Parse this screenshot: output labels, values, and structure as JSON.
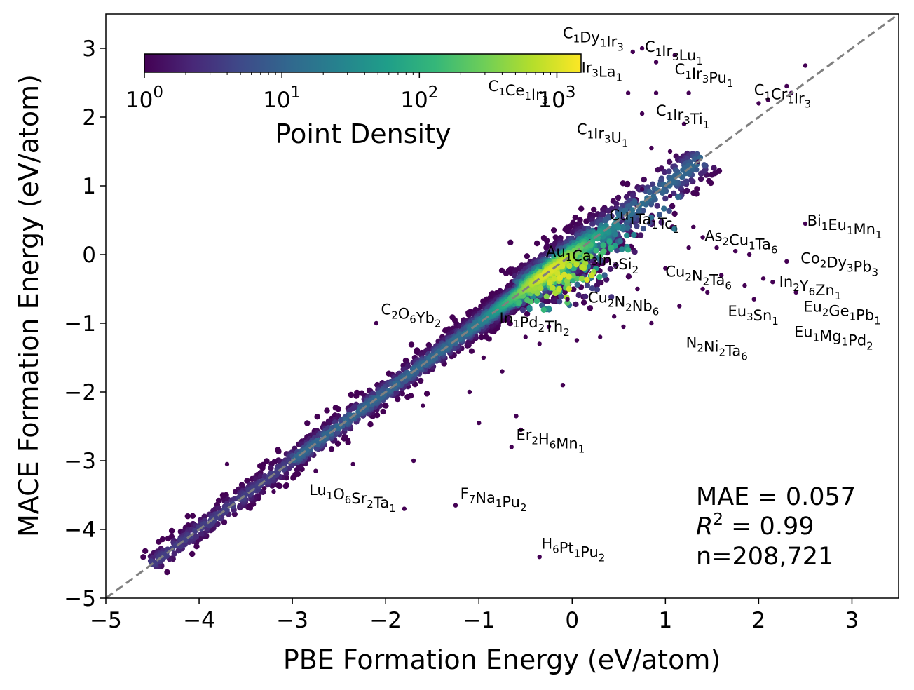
{
  "chart_data": {
    "type": "scatter",
    "xlabel": "PBE Formation Energy (eV/atom)",
    "ylabel": "MACE Formation Energy (eV/atom)",
    "xlim": [
      -5,
      3.5
    ],
    "ylim": [
      -5,
      3.5
    ],
    "x_ticks": [
      "−5",
      "−4",
      "−3",
      "−2",
      "−1",
      "0",
      "1",
      "2",
      "3"
    ],
    "y_ticks": [
      "−5",
      "−4",
      "−3",
      "−2",
      "−1",
      "0",
      "1",
      "2",
      "3"
    ],
    "x_tick_values": [
      -5,
      -4,
      -3,
      -2,
      -1,
      0,
      1,
      2,
      3
    ],
    "y_tick_values": [
      -5,
      -4,
      -3,
      -2,
      -1,
      0,
      1,
      2,
      3
    ],
    "parity_line": {
      "style": "dashed",
      "color": "#808080",
      "from": [
        -5,
        -5
      ],
      "to": [
        3.5,
        3.5
      ]
    },
    "colorbar": {
      "title": "Point Density",
      "scale": "log",
      "range": [
        1,
        1500
      ],
      "colormap": "viridis",
      "ticks": [
        {
          "base": "10",
          "exp": "0",
          "value": 1
        },
        {
          "base": "10",
          "exp": "1",
          "value": 10
        },
        {
          "base": "10",
          "exp": "2",
          "value": 100
        },
        {
          "base": "10",
          "exp": "3",
          "value": 1000
        }
      ],
      "stops": [
        "#440154",
        "#482878",
        "#3e4a89",
        "#31688e",
        "#26828e",
        "#1f9e89",
        "#35b779",
        "#6ece58",
        "#b5de2b",
        "#fde725"
      ]
    },
    "stats": {
      "mae": "MAE = 0.057",
      "r2_symbol": "R",
      "r2_exp": "2",
      "r2_value": " = 0.99",
      "n": "n=208,721"
    },
    "point_count": 208721,
    "bulk_spread": 0.12,
    "outliers": [
      {
        "x": 0.65,
        "y": 2.95
      },
      {
        "x": 0.75,
        "y": 3.0
      },
      {
        "x": 0.9,
        "y": 2.8
      },
      {
        "x": 1.1,
        "y": 2.9
      },
      {
        "x": 0.6,
        "y": 2.35
      },
      {
        "x": 0.9,
        "y": 2.35
      },
      {
        "x": 1.25,
        "y": 2.35
      },
      {
        "x": 0.75,
        "y": 2.05
      },
      {
        "x": 1.2,
        "y": 1.9
      },
      {
        "x": 0.85,
        "y": 1.55
      },
      {
        "x": 1.05,
        "y": 1.5
      },
      {
        "x": 2.0,
        "y": 2.2
      },
      {
        "x": 2.1,
        "y": 2.25
      },
      {
        "x": 2.3,
        "y": 2.45
      },
      {
        "x": 2.5,
        "y": 2.75
      },
      {
        "x": 2.35,
        "y": 2.35
      },
      {
        "x": 1.3,
        "y": 0.4
      },
      {
        "x": 1.4,
        "y": 0.25
      },
      {
        "x": 1.55,
        "y": 0.1
      },
      {
        "x": 1.75,
        "y": 0.05
      },
      {
        "x": 1.9,
        "y": 0.0
      },
      {
        "x": 2.3,
        "y": -0.1
      },
      {
        "x": 2.5,
        "y": 0.45
      },
      {
        "x": 1.6,
        "y": -0.3
      },
      {
        "x": 1.85,
        "y": -0.45
      },
      {
        "x": 2.05,
        "y": -0.35
      },
      {
        "x": 2.15,
        "y": -0.4
      },
      {
        "x": 2.4,
        "y": -0.55
      },
      {
        "x": 1.45,
        "y": -0.55
      },
      {
        "x": 1.95,
        "y": -0.65
      },
      {
        "x": 1.15,
        "y": -0.75
      },
      {
        "x": 1.4,
        "y": -0.5
      },
      {
        "x": 0.85,
        "y": -1.0
      },
      {
        "x": 0.55,
        "y": -1.05
      },
      {
        "x": 0.3,
        "y": -1.2
      },
      {
        "x": -0.05,
        "y": -0.65
      },
      {
        "x": -0.35,
        "y": -1.3
      },
      {
        "x": -0.1,
        "y": -1.9
      },
      {
        "x": -0.5,
        "y": -1.2
      },
      {
        "x": -0.6,
        "y": -2.35
      },
      {
        "x": -0.55,
        "y": -2.55
      },
      {
        "x": -0.65,
        "y": -2.8
      },
      {
        "x": -1.0,
        "y": -2.45
      },
      {
        "x": -1.7,
        "y": -3.0
      },
      {
        "x": -1.25,
        "y": -3.65
      },
      {
        "x": -1.8,
        "y": -3.7
      },
      {
        "x": -2.35,
        "y": -3.05
      },
      {
        "x": -3.7,
        "y": -3.05
      },
      {
        "x": -3.3,
        "y": -3.4
      },
      {
        "x": -0.35,
        "y": -4.4
      },
      {
        "x": -2.1,
        "y": -1.0
      },
      {
        "x": -0.95,
        "y": -1.5
      },
      {
        "x": -0.75,
        "y": -1.7
      },
      {
        "x": -1.1,
        "y": -2.0
      },
      {
        "x": -1.6,
        "y": -2.2
      },
      {
        "x": -2.0,
        "y": -2.2
      },
      {
        "x": -2.4,
        "y": -2.7
      },
      {
        "x": -2.75,
        "y": -3.15
      },
      {
        "x": -3.2,
        "y": -3.45
      },
      {
        "x": -0.25,
        "y": -1.05
      },
      {
        "x": 0.05,
        "y": -1.25
      },
      {
        "x": 0.45,
        "y": -0.9
      },
      {
        "x": 0.7,
        "y": -0.5
      },
      {
        "x": 1.0,
        "y": -0.2
      },
      {
        "x": 1.25,
        "y": 0.1
      },
      {
        "x": 1.05,
        "y": 0.85
      },
      {
        "x": 0.75,
        "y": 0.95
      },
      {
        "x": 1.35,
        "y": 1.35
      }
    ],
    "annotations": [
      {
        "x": -0.1,
        "y": 3.15,
        "parts": [
          [
            "C",
            "1"
          ],
          [
            "Dy",
            "1"
          ],
          [
            "Ir",
            "3"
          ]
        ]
      },
      {
        "x": 0.78,
        "y": 2.95,
        "parts": [
          [
            "C",
            "1"
          ],
          [
            "Ir",
            "3"
          ],
          [
            "Lu",
            "1"
          ]
        ]
      },
      {
        "x": 0.1,
        "y": 2.65,
        "parts": [
          [
            "Ir",
            "3"
          ],
          [
            "La",
            "1"
          ]
        ]
      },
      {
        "x": 1.1,
        "y": 2.62,
        "parts": [
          [
            "C",
            "1"
          ],
          [
            "Ir",
            "3"
          ],
          [
            "Pu",
            "1"
          ]
        ]
      },
      {
        "x": -0.9,
        "y": 2.38,
        "parts": [
          [
            "C",
            "1"
          ],
          [
            "Ce",
            "1"
          ],
          [
            "Ir",
            "3"
          ]
        ]
      },
      {
        "x": 1.95,
        "y": 2.32,
        "parts": [
          [
            "C",
            "1"
          ],
          [
            "Cr",
            "1"
          ],
          [
            "Ir",
            "3"
          ]
        ]
      },
      {
        "x": 0.9,
        "y": 2.02,
        "parts": [
          [
            "C",
            "1"
          ],
          [
            "Ir",
            "3"
          ],
          [
            "Ti",
            "1"
          ]
        ]
      },
      {
        "x": 0.05,
        "y": 1.75,
        "parts": [
          [
            "C",
            "1"
          ],
          [
            "Ir",
            "3"
          ],
          [
            "U",
            "1"
          ]
        ]
      },
      {
        "x": 0.4,
        "y": 0.5,
        "parts": [
          [
            "Cu",
            "1"
          ],
          [
            "Ta",
            "1"
          ],
          [
            "Tc",
            "1"
          ]
        ]
      },
      {
        "x": 2.52,
        "y": 0.42,
        "parts": [
          [
            "Bi",
            "1"
          ],
          [
            "Eu",
            "1"
          ],
          [
            "Mn",
            "1"
          ]
        ]
      },
      {
        "x": 1.42,
        "y": 0.2,
        "parts": [
          [
            "As",
            "2"
          ],
          [
            "Cu",
            "1"
          ],
          [
            "Ta",
            "6"
          ]
        ]
      },
      {
        "x": -0.28,
        "y": -0.03,
        "parts": [
          [
            "Au",
            "1"
          ],
          [
            "Ca",
            "3"
          ],
          [
            "In",
            "3"
          ],
          [
            "Si",
            "2"
          ]
        ]
      },
      {
        "x": 2.45,
        "y": -0.13,
        "parts": [
          [
            "Co",
            "2"
          ],
          [
            "Dy",
            "3"
          ],
          [
            "Pb",
            "3"
          ]
        ]
      },
      {
        "x": 1.0,
        "y": -0.32,
        "parts": [
          [
            "Cu",
            "2"
          ],
          [
            "N",
            "2"
          ],
          [
            "Ta",
            "6"
          ]
        ]
      },
      {
        "x": 2.22,
        "y": -0.47,
        "parts": [
          [
            "In",
            "2"
          ],
          [
            "Y",
            "6"
          ],
          [
            "Zn",
            "1"
          ]
        ]
      },
      {
        "x": 0.17,
        "y": -0.7,
        "parts": [
          [
            "Cu",
            "2"
          ],
          [
            "N",
            "2"
          ],
          [
            "Nb",
            "6"
          ]
        ]
      },
      {
        "x": -2.05,
        "y": -0.87,
        "parts": [
          [
            "C",
            "2"
          ],
          [
            "O",
            "6"
          ],
          [
            "Yb",
            "2"
          ]
        ]
      },
      {
        "x": 2.48,
        "y": -0.83,
        "parts": [
          [
            "Eu",
            "2"
          ],
          [
            "Ge",
            "1"
          ],
          [
            "Pb",
            "1"
          ]
        ]
      },
      {
        "x": 1.67,
        "y": -0.9,
        "parts": [
          [
            "Eu",
            "3"
          ],
          [
            "Sn",
            "1"
          ]
        ]
      },
      {
        "x": -0.78,
        "y": -1.0,
        "parts": [
          [
            "In",
            "1"
          ],
          [
            "Pd",
            "2"
          ],
          [
            "Th",
            "2"
          ]
        ]
      },
      {
        "x": 2.38,
        "y": -1.2,
        "parts": [
          [
            "Eu",
            "1"
          ],
          [
            "Mg",
            "1"
          ],
          [
            "Pd",
            "2"
          ]
        ]
      },
      {
        "x": 1.22,
        "y": -1.35,
        "parts": [
          [
            "N",
            "2"
          ],
          [
            "Ni",
            "2"
          ],
          [
            "Ta",
            "6"
          ]
        ]
      },
      {
        "x": -0.6,
        "y": -2.7,
        "parts": [
          [
            "Er",
            "2"
          ],
          [
            "H",
            "6"
          ],
          [
            "Mn",
            "1"
          ]
        ]
      },
      {
        "x": -2.82,
        "y": -3.5,
        "parts": [
          [
            "Lu",
            "1"
          ],
          [
            "O",
            "6"
          ],
          [
            "Sr",
            "2"
          ],
          [
            "Ta",
            "1"
          ]
        ]
      },
      {
        "x": -1.2,
        "y": -3.55,
        "parts": [
          [
            "F",
            "7"
          ],
          [
            "Na",
            "1"
          ],
          [
            "Pu",
            "2"
          ]
        ]
      },
      {
        "x": -0.33,
        "y": -4.28,
        "parts": [
          [
            "H",
            "6"
          ],
          [
            "Pt",
            "1"
          ],
          [
            "Pu",
            "2"
          ]
        ]
      }
    ]
  }
}
